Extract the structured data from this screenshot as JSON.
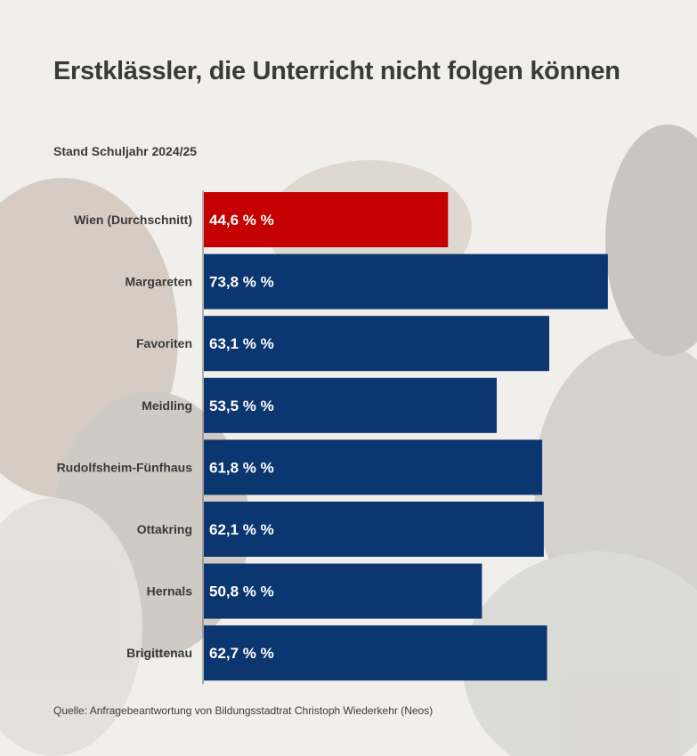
{
  "title": "Erstklässler, die Unterricht nicht folgen können",
  "subtitle": "Stand Schuljahr 2024/25",
  "source": "Quelle: Anfragebeantwortung von Bildungsstadtrat Christoph Wiederkehr (Neos)",
  "colors": {
    "highlight": "#c40000",
    "bar": "#0c3670",
    "axis": "#6e6e6e"
  },
  "chart_data": {
    "type": "bar",
    "orientation": "horizontal",
    "unit": "% %",
    "categories": [
      "Wien (Durchschnitt)",
      "Margareten",
      "Favoriten",
      "Meidling",
      "Rudolfsheim-Fünfhaus",
      "Ottakring",
      "Hernals",
      "Brigittenau"
    ],
    "values": [
      44.6,
      73.8,
      63.1,
      53.5,
      61.8,
      62.1,
      50.8,
      62.7
    ],
    "value_labels": [
      "44,6 % %",
      "73,8 % %",
      "63,1 % %",
      "53,5 % %",
      "61,8 % %",
      "62,1 % %",
      "50,8 % %",
      "62,7 % %"
    ],
    "highlight_index": 0,
    "xlim": [
      0,
      74.8
    ],
    "grid": false
  }
}
